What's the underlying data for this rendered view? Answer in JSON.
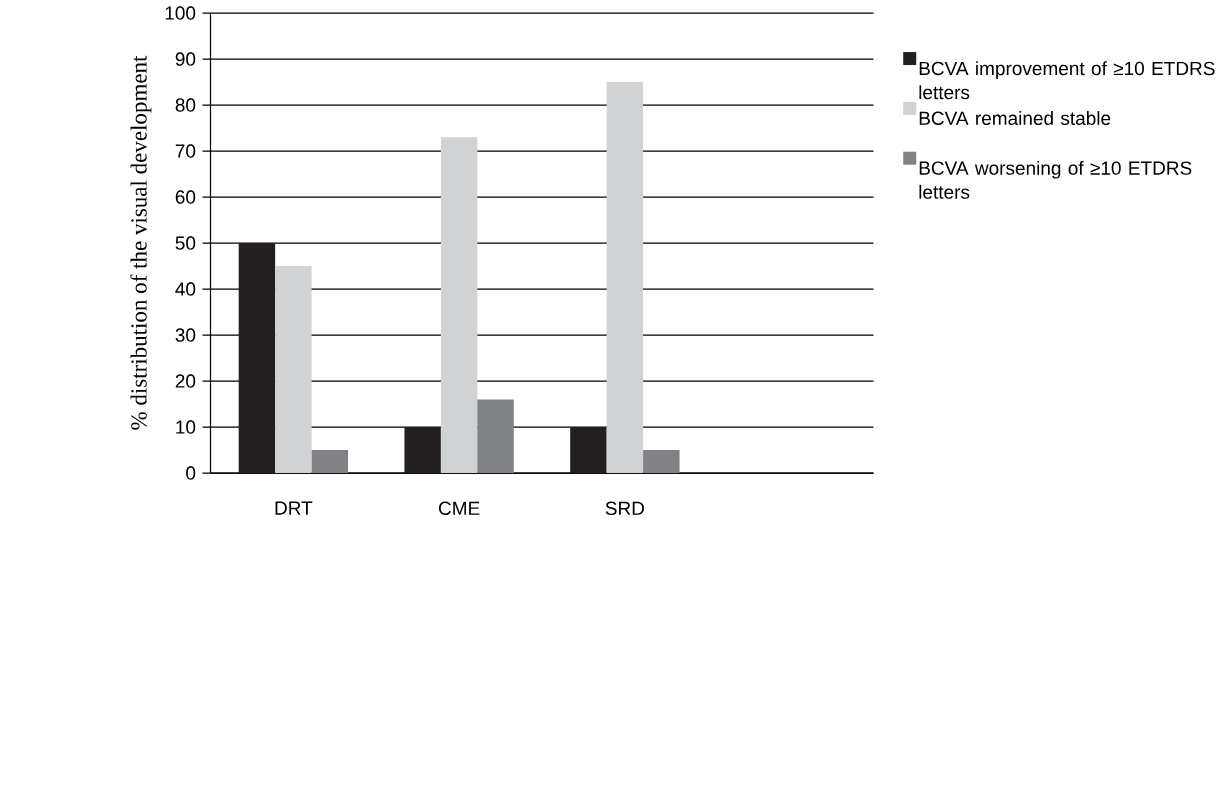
{
  "chart_data": {
    "type": "bar",
    "ylabel": "% distribution of the visual development",
    "categories": [
      "DRT",
      "CME",
      "SRD",
      null
    ],
    "series": [
      {
        "name": "BCVA improvement of ≥10 ETDRS letters",
        "color": "#231f20",
        "values": [
          50,
          10,
          10,
          null
        ]
      },
      {
        "name": "BCVA remained stable",
        "color": "#d1d2d4",
        "values": [
          45,
          73,
          85,
          null
        ]
      },
      {
        "name": "BCVA worsening of ≥10 ETDRS letters",
        "color": "#808285",
        "values": [
          5,
          16,
          5,
          null
        ]
      }
    ],
    "ylim": [
      0,
      100
    ],
    "yticks": [
      0,
      10,
      20,
      30,
      40,
      50,
      60,
      70,
      80,
      90,
      100
    ],
    "grid": "y",
    "legend": "right"
  }
}
